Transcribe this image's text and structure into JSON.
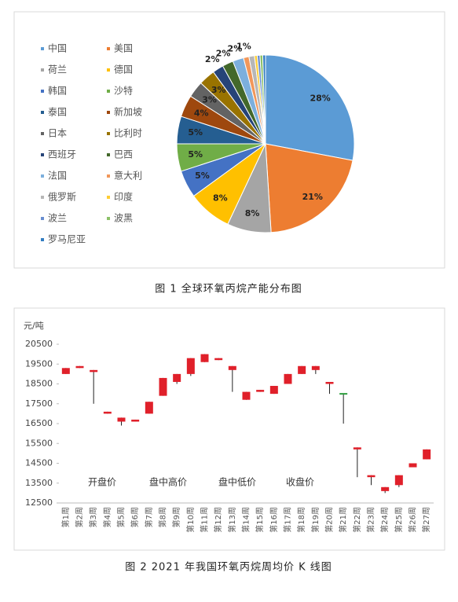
{
  "chart_data": [
    {
      "type": "pie",
      "caption": "图 1  全球环氧丙烷产能分布图",
      "categories": [
        "中国",
        "美国",
        "荷兰",
        "德国",
        "韩国",
        "沙特",
        "泰国",
        "新加坡",
        "日本",
        "比利时",
        "西班牙",
        "巴西",
        "法国",
        "意大利",
        "俄罗斯",
        "印度",
        "波兰",
        "波黑",
        "罗马尼亚"
      ],
      "values": [
        28,
        21,
        8,
        8,
        5,
        5,
        5,
        4,
        3,
        3,
        2,
        2,
        2,
        1,
        1,
        0.5,
        0.5,
        0.5,
        0.5
      ],
      "value_labels": [
        "28%",
        "21%",
        "8%",
        "8%",
        "5%",
        "5%",
        "5%",
        "4%",
        "3%",
        "3%",
        "2%",
        "2%",
        "2%",
        "1%",
        null,
        null,
        null,
        null,
        null
      ],
      "colors": [
        "#5b9bd5",
        "#ed7d31",
        "#a5a5a5",
        "#ffc000",
        "#4472c4",
        "#70ad47",
        "#255e91",
        "#9e480e",
        "#636363",
        "#997300",
        "#264478",
        "#43682b",
        "#7cafdd",
        "#f1975a",
        "#b7b7b7",
        "#ffcd33",
        "#698ed0",
        "#8cc168",
        "#327dc2"
      ],
      "legend": "left"
    },
    {
      "type": "candlestick",
      "caption": "图 2  2021 年我国环氧丙烷周均价 K 线图",
      "ylabel": "元/吨",
      "categories": [
        "第1周",
        "第2周",
        "第3周",
        "第4周",
        "第5周",
        "第6周",
        "第7周",
        "第8周",
        "第9周",
        "第10周",
        "第11周",
        "第12周",
        "第13周",
        "第14周",
        "第15周",
        "第16周",
        "第17周",
        "第18周",
        "第19周",
        "第20周",
        "第21周",
        "第22周",
        "第23周",
        "第24周",
        "第25周",
        "第26周",
        "第27周"
      ],
      "series": [
        {
          "name": "开盘价",
          "values": [
            19300,
            19400,
            19200,
            17100,
            16800,
            16700,
            17000,
            17900,
            18600,
            19000,
            20000,
            19800,
            19400,
            18100,
            18200,
            18000,
            18500,
            19000,
            19400,
            18600,
            18000,
            15300,
            13900,
            13300,
            13400,
            14300,
            14700
          ]
        },
        {
          "name": "盘中高价",
          "values": [
            19300,
            19400,
            19200,
            17100,
            16800,
            16700,
            17600,
            18800,
            19000,
            19800,
            20000,
            19800,
            19400,
            18100,
            18200,
            18400,
            19000,
            19400,
            19400,
            18600,
            18000,
            15300,
            13900,
            13300,
            13900,
            14500,
            15200
          ]
        },
        {
          "name": "盘中低价",
          "values": [
            19000,
            19300,
            17500,
            17000,
            16400,
            16600,
            17000,
            17900,
            18500,
            18900,
            19600,
            19700,
            18100,
            17700,
            18100,
            18000,
            18500,
            19000,
            19000,
            18000,
            16500,
            13800,
            13400,
            13000,
            13300,
            14300,
            14700
          ]
        },
        {
          "name": "收盘价",
          "values": [
            19000,
            19300,
            19100,
            17000,
            16600,
            16600,
            17600,
            18800,
            19000,
            19800,
            19600,
            19700,
            19200,
            17700,
            18100,
            18400,
            19000,
            19400,
            19200,
            18500,
            18000,
            15200,
            13800,
            13100,
            13900,
            14500,
            15200
          ]
        }
      ],
      "color": "#e0202a",
      "doji_color": "#2e9e3e",
      "wick_color": "#222",
      "ylim": [
        12500,
        20500
      ],
      "yticks": [
        12500,
        13500,
        14500,
        15500,
        16500,
        17500,
        18500,
        19500,
        20500
      ]
    }
  ]
}
